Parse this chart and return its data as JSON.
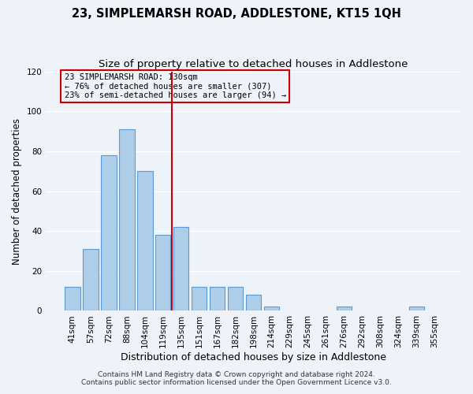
{
  "title": "23, SIMPLEMARSH ROAD, ADDLESTONE, KT15 1QH",
  "subtitle": "Size of property relative to detached houses in Addlestone",
  "xlabel": "Distribution of detached houses by size in Addlestone",
  "ylabel": "Number of detached properties",
  "bar_labels": [
    "41sqm",
    "57sqm",
    "72sqm",
    "88sqm",
    "104sqm",
    "119sqm",
    "135sqm",
    "151sqm",
    "167sqm",
    "182sqm",
    "198sqm",
    "214sqm",
    "229sqm",
    "245sqm",
    "261sqm",
    "276sqm",
    "292sqm",
    "308sqm",
    "324sqm",
    "339sqm",
    "355sqm"
  ],
  "bar_values": [
    12,
    31,
    78,
    91,
    70,
    38,
    42,
    12,
    12,
    12,
    8,
    2,
    0,
    0,
    0,
    2,
    0,
    0,
    0,
    2,
    0
  ],
  "bar_color": "#aecde8",
  "bar_edge_color": "#5b9bd5",
  "vline_color": "#cc0000",
  "vline_index": 6,
  "annotation_title": "23 SIMPLEMARSH ROAD: 130sqm",
  "annotation_line1": "← 76% of detached houses are smaller (307)",
  "annotation_line2": "23% of semi-detached houses are larger (94) →",
  "annotation_box_edge": "#cc0000",
  "ylim": [
    0,
    120
  ],
  "yticks": [
    0,
    20,
    40,
    60,
    80,
    100,
    120
  ],
  "footer_line1": "Contains HM Land Registry data © Crown copyright and database right 2024.",
  "footer_line2": "Contains public sector information licensed under the Open Government Licence v3.0.",
  "background_color": "#eef2f9",
  "grid_color": "#ffffff",
  "title_fontsize": 10.5,
  "subtitle_fontsize": 9.5,
  "xlabel_fontsize": 9,
  "ylabel_fontsize": 8.5,
  "tick_fontsize": 7.5,
  "footer_fontsize": 6.5
}
